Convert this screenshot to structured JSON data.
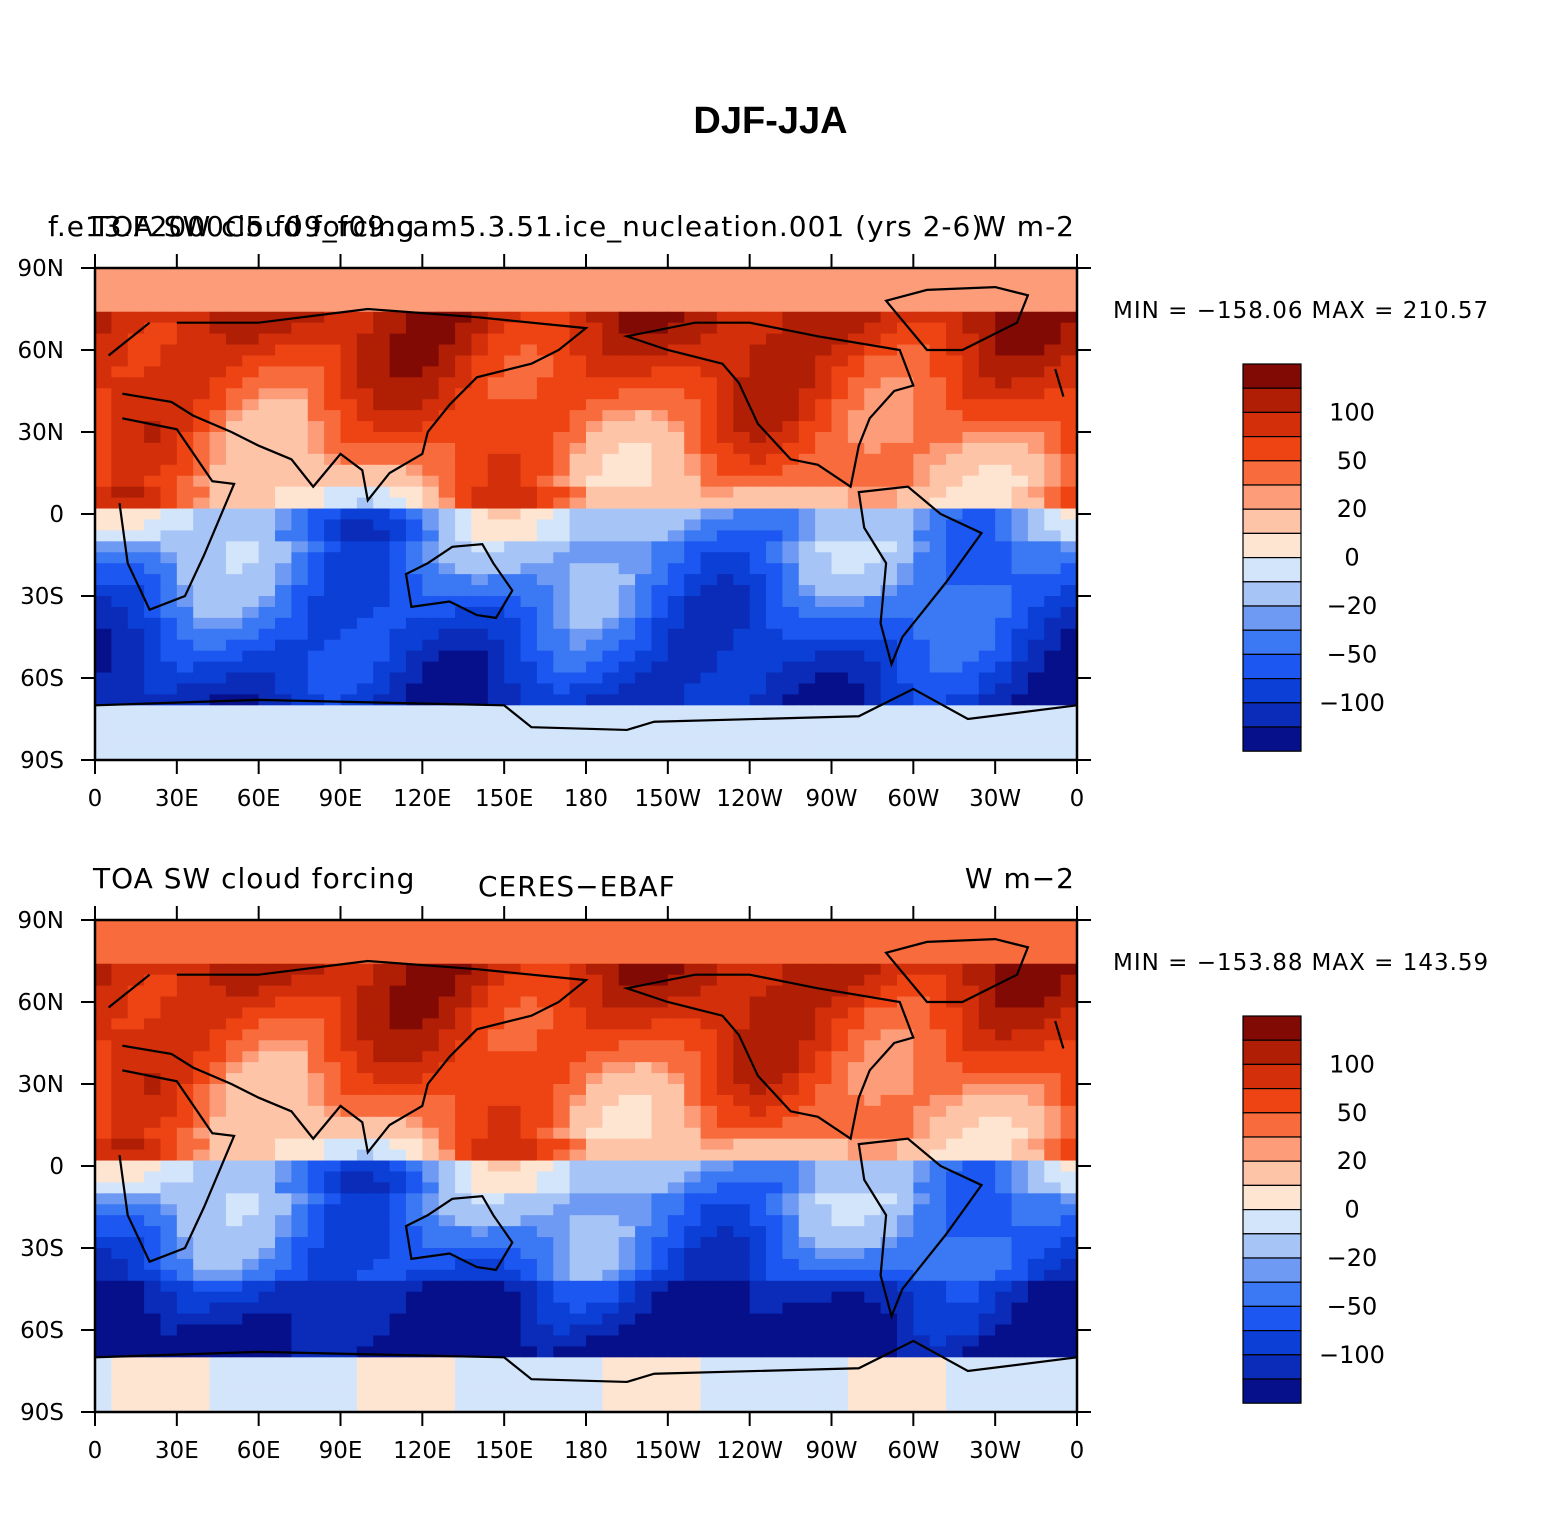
{
  "title": "DJF-JJA",
  "chart_data": [
    {
      "type": "heatmap",
      "left_title": "f.e13.F2000C5.f09_f09.cam5.3.51.ice_nucleation.001 (yrs 2-6)",
      "overlaid_title": "TOA SW cloud forcing",
      "units": "W m-2",
      "min_label": "MIN = −158.06",
      "max_label": "MAX = 210.57",
      "x_ticks": [
        "0",
        "30E",
        "60E",
        "90E",
        "120E",
        "150E",
        "180",
        "150W",
        "120W",
        "90W",
        "60W",
        "30W",
        "0"
      ],
      "y_ticks": [
        "90N",
        "60N",
        "30N",
        "0",
        "30S",
        "60S",
        "90S"
      ],
      "colorbar_labels": [
        "100",
        "50",
        "20",
        "0",
        "−20",
        "−50",
        "−100"
      ]
    },
    {
      "type": "heatmap",
      "left_title": "TOA SW cloud forcing",
      "center_title": "CERES−EBAF",
      "units": "W m−2",
      "min_label": "MIN = −153.88",
      "max_label": "MAX = 143.59",
      "x_ticks": [
        "0",
        "30E",
        "60E",
        "90E",
        "120E",
        "150E",
        "180",
        "150W",
        "120W",
        "90W",
        "60W",
        "30W",
        "0"
      ],
      "y_ticks": [
        "90N",
        "60N",
        "30N",
        "0",
        "30S",
        "60S",
        "90S"
      ],
      "colorbar_labels": [
        "100",
        "50",
        "20",
        "0",
        "−20",
        "−50",
        "−100"
      ]
    }
  ],
  "colors": {
    "palette": [
      "#06108a",
      "#0a2cb8",
      "#0b3fd6",
      "#1b57f0",
      "#3b78f3",
      "#6e9af4",
      "#a7c4f6",
      "#d3e5fb",
      "#fde5d2",
      "#fdc4a8",
      "#fc9c78",
      "#f86b3d",
      "#ee4414",
      "#d22f0a",
      "#b01f05",
      "#820a04"
    ]
  }
}
